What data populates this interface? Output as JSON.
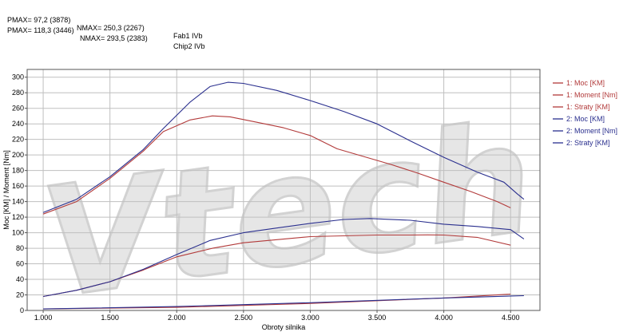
{
  "header": {
    "line1": {
      "pmax": "PMAX= 97,2 (3878)",
      "nmax": "NMAX= 250,3 (2267)",
      "label": "Fab1 IVb"
    },
    "line2": {
      "pmax": "PMAX= 118,3 (3446)",
      "nmax": "NMAX= 293,5 (2383)",
      "label": "Chip2 IVb"
    }
  },
  "watermark": "Vtech",
  "colors": {
    "run1": "#b23a3a",
    "run2": "#2a2f8e",
    "grid": "#bfbfbf",
    "plot_bg": "#ffffff"
  },
  "chart_data": {
    "type": "line",
    "title": "",
    "xlabel": "Obroty silnika",
    "ylabel": "Moc [KM] / Moment [Nm]",
    "xlim": [
      880,
      4720
    ],
    "ylim": [
      0,
      310
    ],
    "x_ticks": [
      1000,
      1500,
      2000,
      2500,
      3000,
      3500,
      4000,
      4500
    ],
    "x_tick_labels": [
      "1.000",
      "1.500",
      "2.000",
      "2.500",
      "3.000",
      "3.500",
      "4.000",
      "4.500"
    ],
    "y_ticks": [
      0,
      20,
      40,
      60,
      80,
      100,
      120,
      140,
      160,
      180,
      200,
      220,
      240,
      260,
      280,
      300
    ],
    "y_tick_labels": [
      "0",
      "20",
      "40",
      "60",
      "80",
      "100",
      "120",
      "140",
      "160",
      "180",
      "200",
      "220",
      "240",
      "260",
      "280",
      "300"
    ],
    "grid": true,
    "legend_position": "right",
    "series": [
      {
        "name": "1: Moc [KM]",
        "color": "#b23a3a",
        "x": [
          1000,
          1250,
          1500,
          1750,
          2000,
          2267,
          2500,
          2750,
          3000,
          3250,
          3500,
          3750,
          3878,
          4000,
          4250,
          4500
        ],
        "y": [
          18,
          26,
          37,
          52,
          69,
          80,
          87,
          91,
          95,
          96,
          97,
          97,
          97.2,
          97,
          94,
          84
        ]
      },
      {
        "name": "1: Moment [Nm]",
        "color": "#b23a3a",
        "x": [
          1000,
          1250,
          1500,
          1750,
          1900,
          2100,
          2267,
          2400,
          2600,
          2800,
          3000,
          3200,
          3400,
          3600,
          3800,
          4000,
          4200,
          4400,
          4500
        ],
        "y": [
          124,
          140,
          170,
          205,
          230,
          245,
          250.3,
          249,
          242,
          235,
          225,
          208,
          198,
          188,
          177,
          165,
          153,
          140,
          132
        ]
      },
      {
        "name": "1: Straty [KM]",
        "color": "#b23a3a",
        "x": [
          1000,
          2000,
          3000,
          4000,
          4500
        ],
        "y": [
          2,
          4,
          9,
          16,
          21
        ]
      },
      {
        "name": "2: Moc [KM]",
        "color": "#2a2f8e",
        "x": [
          1000,
          1250,
          1500,
          1750,
          2000,
          2250,
          2500,
          2750,
          3000,
          3250,
          3446,
          3750,
          4000,
          4250,
          4500,
          4600
        ],
        "y": [
          18,
          26,
          37,
          53,
          72,
          90,
          100,
          106,
          112,
          117,
          118.3,
          116,
          111,
          108,
          104,
          92
        ]
      },
      {
        "name": "2: Moment [Nm]",
        "color": "#2a2f8e",
        "x": [
          1000,
          1250,
          1500,
          1750,
          1900,
          2100,
          2250,
          2383,
          2500,
          2750,
          3000,
          3250,
          3500,
          3750,
          4000,
          4250,
          4450,
          4550,
          4600
        ],
        "y": [
          126,
          143,
          172,
          207,
          234,
          268,
          288,
          293.5,
          292,
          283,
          270,
          256,
          240,
          218,
          197,
          178,
          165,
          150,
          143
        ]
      },
      {
        "name": "2: Straty [KM]",
        "color": "#2a2f8e",
        "x": [
          1000,
          2000,
          3000,
          4000,
          4600
        ],
        "y": [
          2,
          5,
          10,
          16,
          19
        ]
      }
    ]
  }
}
